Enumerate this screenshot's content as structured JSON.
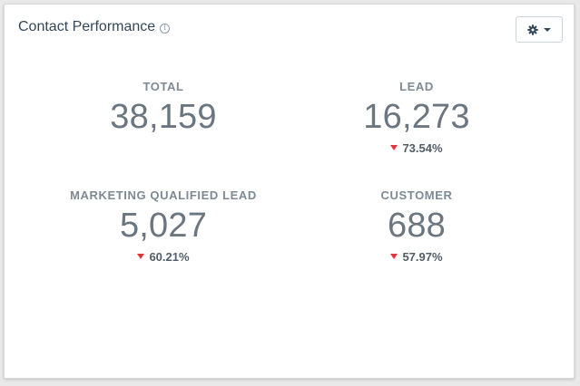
{
  "card": {
    "title": "Contact Performance",
    "info_icon": "info-icon",
    "settings_icon": "gear-icon",
    "dropdown_icon": "caret-down-icon"
  },
  "metrics": [
    {
      "label": "TOTAL",
      "value": "38,159",
      "change": ""
    },
    {
      "label": "LEAD",
      "value": "16,273",
      "change": "73.54%",
      "direction": "down"
    },
    {
      "label": "MARKETING QUALIFIED LEAD",
      "value": "5,027",
      "change": "60.21%",
      "direction": "down"
    },
    {
      "label": "CUSTOMER",
      "value": "688",
      "change": "57.97%",
      "direction": "down"
    }
  ],
  "colors": {
    "title": "#33475b",
    "label": "#7c8a96",
    "value": "#6b7680",
    "decrease": "#e0363d"
  }
}
